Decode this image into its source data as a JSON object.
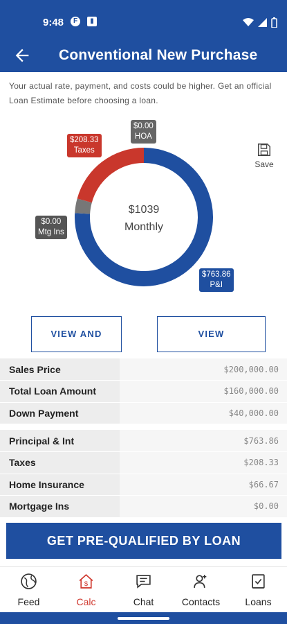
{
  "status_bar": {
    "time": "9:48"
  },
  "header": {
    "title": "Conventional New Purchase"
  },
  "disclaimer": "Your actual rate, payment, and costs could be higher. Get an official Loan Estimate before choosing a loan.",
  "chart_data": {
    "type": "pie",
    "center_value": "$1039",
    "center_label": "Monthly",
    "slices": [
      {
        "name": "P&I",
        "value": 763.86,
        "label": "$763.86",
        "color": "#1f4fa0"
      },
      {
        "name": "Mtg Ins",
        "value": 0.0,
        "label": "$0.00",
        "color": "#777777"
      },
      {
        "name": "Taxes",
        "value": 208.33,
        "label": "$208.33",
        "color": "#c9372c"
      },
      {
        "name": "HOA",
        "value": 0.0,
        "label": "$0.00",
        "color": "#666666"
      }
    ]
  },
  "save_label": "Save",
  "buttons": {
    "view_share": "VIEW AND SHARE",
    "view_amortization": "VIEW AMORTIZATION"
  },
  "loan_summary": [
    {
      "label": "Sales Price",
      "value": "$200,000.00"
    },
    {
      "label": "Total Loan Amount",
      "value": "$160,000.00"
    },
    {
      "label": "Down Payment",
      "value": "$40,000.00"
    }
  ],
  "payment_breakdown": [
    {
      "label": "Principal & Int",
      "value": "$763.86"
    },
    {
      "label": "Taxes",
      "value": "$208.33"
    },
    {
      "label": "Home Insurance",
      "value": "$66.67"
    },
    {
      "label": "Mortgage Ins",
      "value": "$0.00"
    }
  ],
  "cta": "GET PRE-QUALIFIED BY LOAN",
  "nav": [
    {
      "label": "Feed",
      "icon": "globe-icon"
    },
    {
      "label": "Calc",
      "icon": "calc-house-icon",
      "active": true
    },
    {
      "label": "Chat",
      "icon": "chat-icon"
    },
    {
      "label": "Contacts",
      "icon": "contacts-icon"
    },
    {
      "label": "Loans",
      "icon": "loans-icon"
    }
  ],
  "colors": {
    "brand": "#1f4fa0",
    "accent": "#d0392f"
  }
}
